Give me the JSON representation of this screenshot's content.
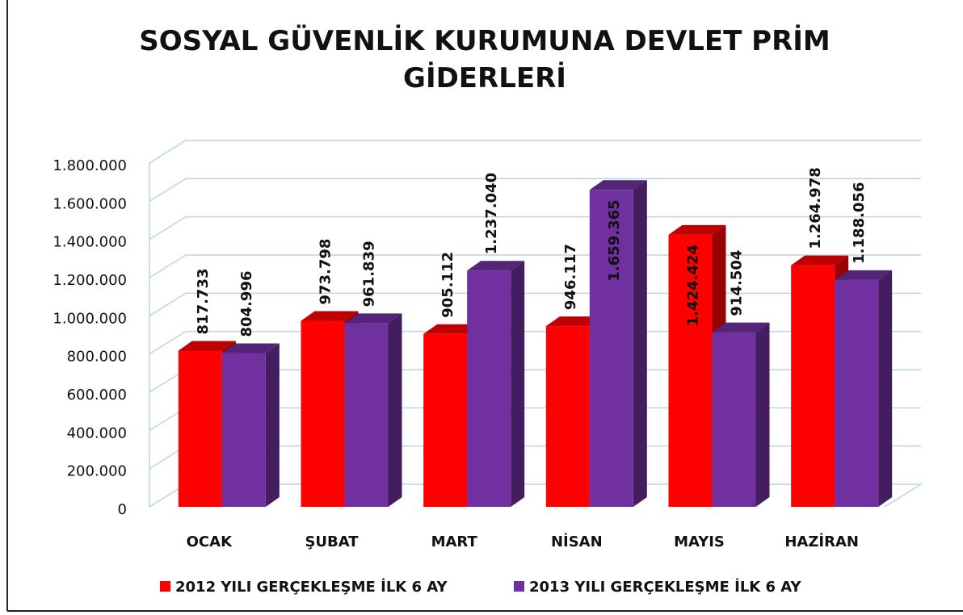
{
  "chart_data": {
    "type": "bar3d",
    "title": "SOSYAL GÜVENLİK KURUMUNA DEVLET PRİM GİDERLERİ",
    "categories": [
      "OCAK",
      "ŞUBAT",
      "MART",
      "NİSAN",
      "MAYIS",
      "HAZİRAN"
    ],
    "series": [
      {
        "name": "2012 YILI GERÇEKLEŞME İLK 6 AY",
        "color": "#ff0000",
        "values": [
          817733,
          973798,
          905112,
          946117,
          1424424,
          1264978
        ],
        "value_labels": [
          "817.733",
          "973.798",
          "905.112",
          "946.117",
          "1.424.424",
          "1.264.978"
        ]
      },
      {
        "name": "2013 YILI GERÇEKLEŞME İLK 6 AY",
        "color": "#7030a0",
        "values": [
          804996,
          961839,
          1237040,
          1659365,
          914504,
          1188056
        ],
        "value_labels": [
          "804.996",
          "961.839",
          "1.237.040",
          "1.659.365",
          "914.504",
          "1.188.056"
        ]
      }
    ],
    "ylim": [
      0,
      1800000
    ],
    "yticks": [
      0,
      {
        "value": 200000,
        "label": "200.000"
      },
      {
        "value": 400000,
        "label": "400.000"
      },
      {
        "value": 600000,
        "label": "600.000"
      },
      {
        "value": 800000,
        "label": "800.000"
      },
      {
        "value": 1000000,
        "label": "1.000.000"
      },
      {
        "value": 1200000,
        "label": "1.200.000"
      },
      {
        "value": 1400000,
        "label": "1.400.000"
      },
      {
        "value": 1600000,
        "label": "1.600.000"
      },
      {
        "value": 1800000,
        "label": "1.800.000"
      }
    ],
    "grid": true,
    "legend": "bottom"
  }
}
